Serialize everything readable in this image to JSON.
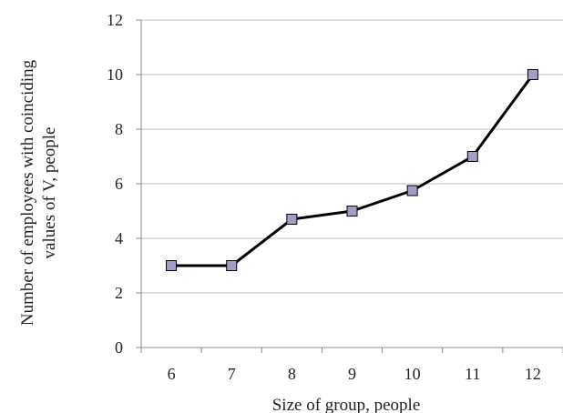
{
  "chart_data": {
    "type": "line",
    "x": [
      6,
      7,
      8,
      9,
      10,
      11,
      12
    ],
    "categories": [
      "6",
      "7",
      "8",
      "9",
      "10",
      "11",
      "12"
    ],
    "series": [
      {
        "values": [
          3,
          3,
          4.7,
          5,
          5.75,
          7,
          10
        ]
      }
    ],
    "xlabel": "Size of group,  people",
    "ylabel_lines": [
      "Number of employees with coinciding",
      "values of  V, people"
    ],
    "ylim": [
      0,
      12
    ],
    "yticks": [
      "0",
      "2",
      "4",
      "6",
      "8",
      "10",
      "12"
    ],
    "grid": "horizontal",
    "legend": "none",
    "colors": {
      "line": "#000000",
      "marker_fill": "#a79bc8",
      "marker_stroke": "#000000",
      "grid": "#c0c0c0",
      "axis": "#8c8c8c"
    },
    "marker": "square"
  }
}
